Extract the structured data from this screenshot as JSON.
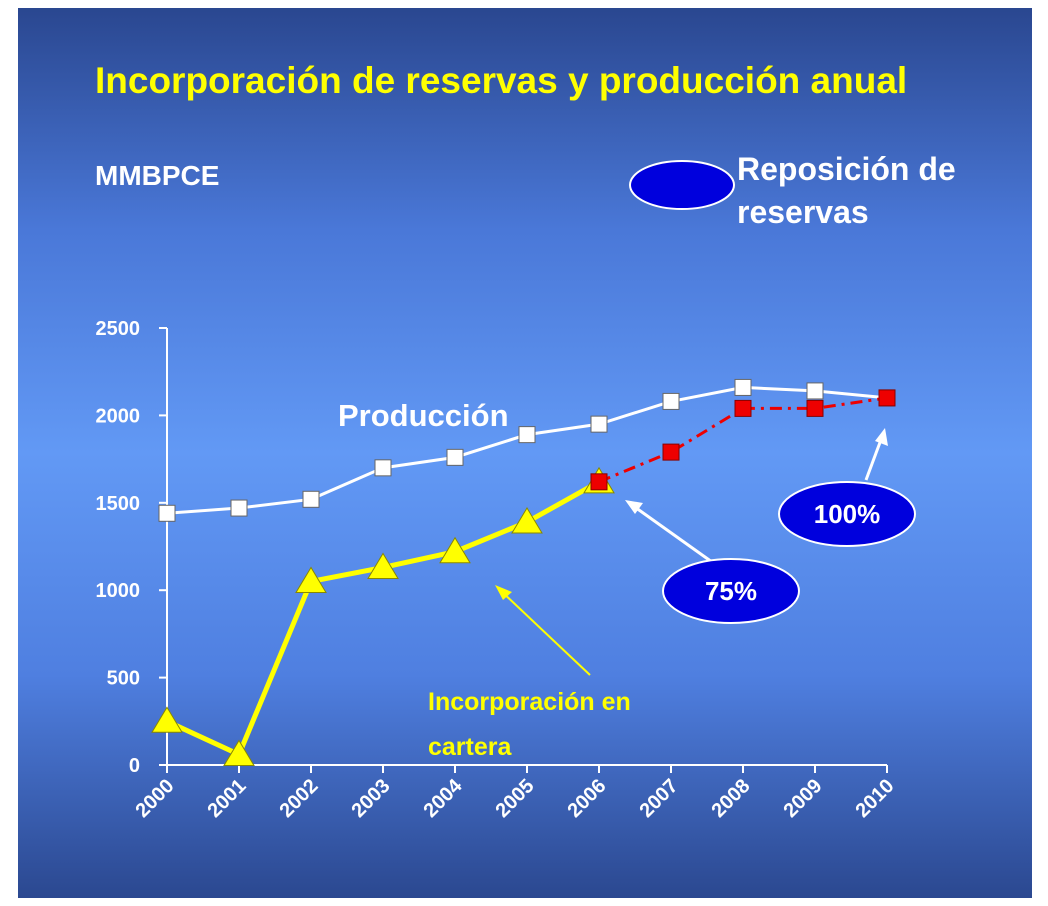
{
  "chart_data": {
    "type": "line",
    "title": "Incorporación de reservas y producción anual",
    "subtitle": "MMBPCE",
    "categories": [
      "2000",
      "2001",
      "2002",
      "2003",
      "2004",
      "2005",
      "2006",
      "2007",
      "2008",
      "2009",
      "2010"
    ],
    "series": [
      {
        "name": "Producción",
        "color": "#ffffff",
        "marker": "square",
        "values": [
          1440,
          1470,
          1520,
          1700,
          1760,
          1890,
          1950,
          2080,
          2160,
          2140,
          2100
        ]
      },
      {
        "name": "Incorporación en cartera",
        "color": "#ffff00",
        "marker": "triangle",
        "values": [
          250,
          60,
          1050,
          1130,
          1220,
          1390,
          1620,
          null,
          null,
          null,
          null
        ]
      },
      {
        "color": "#ee0000",
        "marker": "square",
        "dash": true,
        "values": [
          null,
          null,
          null,
          null,
          null,
          null,
          1620,
          1790,
          2040,
          2040,
          2100
        ]
      }
    ],
    "legend": {
      "label": "Reposición de reservas",
      "color": "#0000dd"
    },
    "annotations": [
      "75%",
      "100%"
    ],
    "ylim": [
      0,
      2500
    ],
    "yticks": [
      0,
      500,
      1000,
      1500,
      2000,
      2500
    ]
  }
}
